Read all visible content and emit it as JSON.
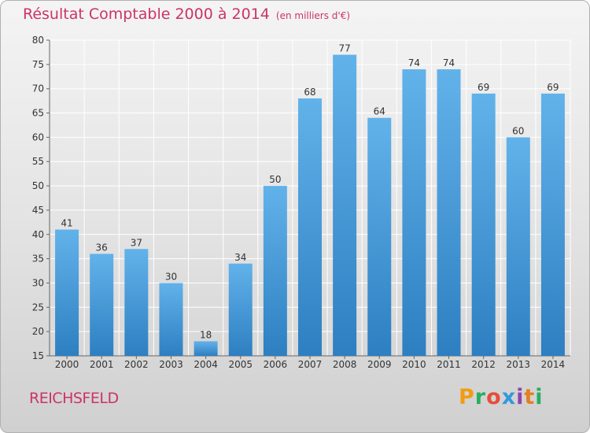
{
  "header": {
    "title": "Résultat Comptable 2000 à 2014",
    "unit": "(en milliers d'€)"
  },
  "footer": {
    "commune": "REICHSFELD",
    "brand": {
      "letters": [
        "P",
        "r",
        "o",
        "x",
        "i",
        "t",
        "i"
      ]
    }
  },
  "colors": {
    "title": "#cc3366",
    "bar_top": "#62b2ea",
    "bar_bottom": "#2d7fc1",
    "grid": "#ffffff",
    "axis_text": "#333333",
    "brand": [
      "#f39c12",
      "#27ae60",
      "#e74c3c",
      "#3498db",
      "#8e44ad",
      "#e67e22",
      "#27ae60"
    ]
  },
  "chart_data": {
    "type": "bar",
    "title": "Résultat Comptable 2000 à 2014",
    "xlabel": "",
    "ylabel": "",
    "categories": [
      "2000",
      "2001",
      "2002",
      "2003",
      "2004",
      "2005",
      "2006",
      "2007",
      "2008",
      "2009",
      "2010",
      "2011",
      "2012",
      "2013",
      "2014"
    ],
    "values": [
      41,
      36,
      37,
      30,
      18,
      34,
      50,
      68,
      77,
      64,
      74,
      74,
      69,
      60,
      69
    ],
    "ylim": [
      15,
      80
    ],
    "yticks": [
      15,
      20,
      25,
      30,
      35,
      40,
      45,
      50,
      55,
      60,
      65,
      70,
      75,
      80
    ],
    "grid": true,
    "legend": "none"
  }
}
